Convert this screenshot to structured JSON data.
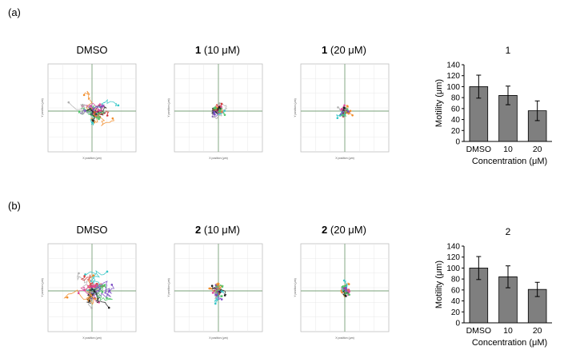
{
  "panels": [
    {
      "label": "(a)",
      "tracks": [
        {
          "bold": "",
          "title": "DMSO"
        },
        {
          "bold": "1",
          "title": " (10 μM)"
        },
        {
          "bold": "1",
          "title": " (20 μM)"
        }
      ],
      "track_axis": {
        "xlabel": "X position (μm)",
        "ylabel": "Y position (μm)"
      }
    },
    {
      "label": "(b)",
      "tracks": [
        {
          "bold": "",
          "title": "DMSO"
        },
        {
          "bold": "2",
          "title": " (10 μM)"
        },
        {
          "bold": "2",
          "title": " (20 μM)"
        }
      ],
      "track_axis": {
        "xlabel": "X position (μm)",
        "ylabel": "Y position (μm)"
      }
    }
  ],
  "track_colors": [
    "#e0479b",
    "#33c6c6",
    "#f28c28",
    "#7b4bc4",
    "#4ec46a",
    "#222222",
    "#b0b0b0",
    "#d33a3a"
  ],
  "chart_data": [
    {
      "type": "bar",
      "title": "1",
      "categories": [
        "DMSO",
        "10",
        "20"
      ],
      "values": [
        100,
        84,
        56
      ],
      "errors": [
        21,
        17,
        18
      ],
      "xlabel": "Concentration (μM)",
      "ylabel": "Motility (μm)",
      "ylim": [
        0,
        140
      ],
      "yticks": [
        0,
        20,
        40,
        60,
        80,
        100,
        120,
        140
      ],
      "bar_color": "#7f7f7f"
    },
    {
      "type": "bar",
      "title": "2",
      "categories": [
        "DMSO",
        "10",
        "20"
      ],
      "values": [
        100,
        84,
        61
      ],
      "errors": [
        21,
        20,
        13
      ],
      "xlabel": "Concentration (μM)",
      "ylabel": "Motility (μm)",
      "ylim": [
        0,
        140
      ],
      "yticks": [
        0,
        20,
        40,
        60,
        80,
        100,
        120,
        140
      ],
      "bar_color": "#7f7f7f"
    }
  ]
}
